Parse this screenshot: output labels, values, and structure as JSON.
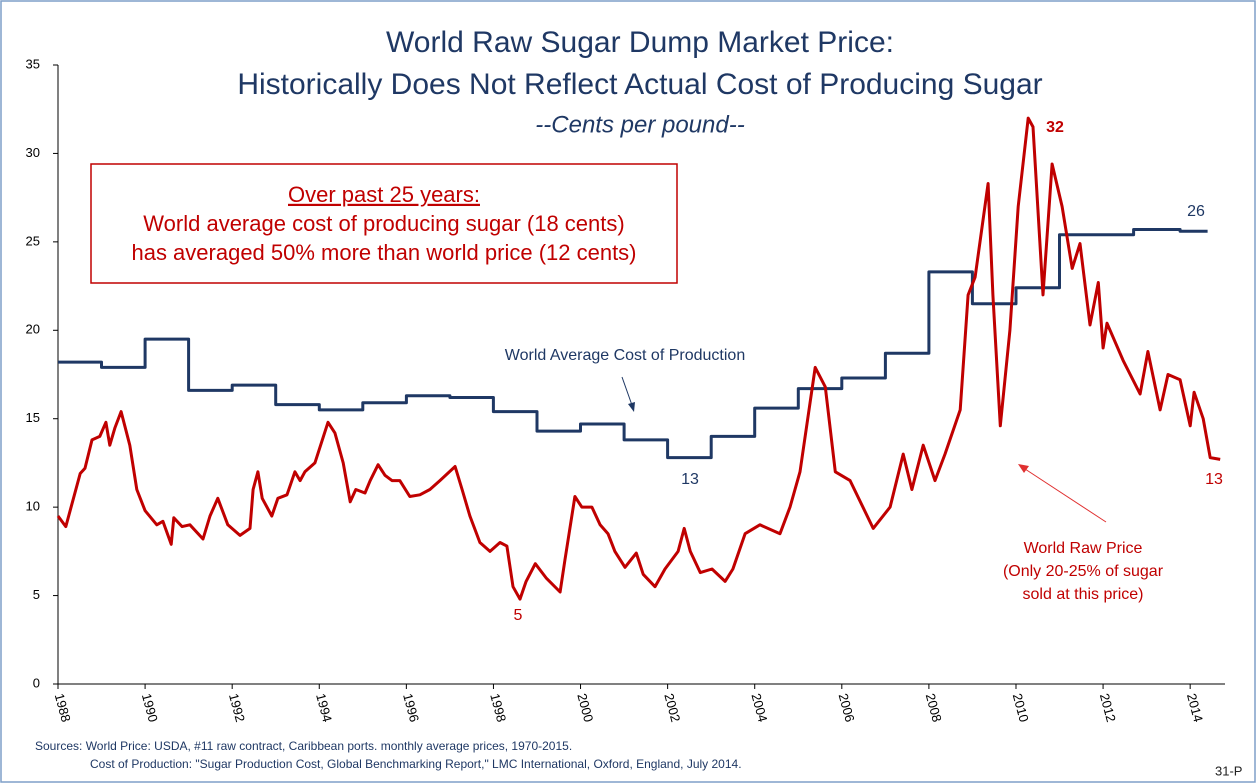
{
  "chart_data": {
    "type": "line",
    "title": [
      "World Raw Sugar Dump Market Price:",
      "Historically Does Not Reflect Actual Cost of Producing Sugar"
    ],
    "subtitle": "--Cents per pound--",
    "box": [
      "Over past 25 years:",
      "World average cost of producing sugar (18 cents)",
      "has averaged 50% more than world price (12 cents)"
    ],
    "annotations": [
      "32",
      "26",
      "13",
      "13",
      "5",
      "World Average Cost of Production",
      "World Raw Price",
      "(Only 20-25% of sugar",
      "sold at this price)"
    ],
    "sources": [
      "Sources:  World Price:  USDA, #11 raw contract, Caribbean ports. monthly average prices, 1970-2015.",
      "Cost of Production: \"Sugar Production Cost, Global Benchmarking Report,\" LMC International, Oxford, England, July 2014."
    ],
    "page_code": "31-P",
    "xlim": [
      1988,
      2014.8
    ],
    "xticks": [
      1988,
      1990,
      1992,
      1994,
      1996,
      1998,
      2000,
      2002,
      2004,
      2006,
      2008,
      2010,
      2012,
      2014
    ],
    "ylim": [
      0,
      35
    ],
    "yticks": [
      0,
      5,
      10,
      15,
      20,
      25,
      30,
      35
    ],
    "grid": false,
    "series": [
      {
        "name": "World Average Cost of Production",
        "color": "#1f3864",
        "x": [
          1988,
          1989,
          1989,
          1990,
          1990,
          1991,
          1991,
          1992,
          1992,
          1993,
          1993,
          1994,
          1994,
          1995,
          1995,
          1996,
          1996,
          1997,
          1997,
          1998,
          1998,
          1999,
          1999,
          2000,
          2000,
          2001,
          2001,
          2002,
          2002,
          2003,
          2003,
          2004,
          2004,
          2005,
          2005,
          2006,
          2006,
          2007,
          2007,
          2008,
          2008,
          2009,
          2009,
          2010,
          2010,
          2011,
          2011,
          2012.7,
          2012.7,
          2013.77,
          2013.77,
          2014.4
        ],
        "values": [
          18.2,
          18.2,
          17.9,
          17.9,
          19.5,
          19.5,
          16.6,
          16.6,
          16.9,
          16.9,
          15.8,
          15.8,
          15.5,
          15.5,
          15.9,
          15.9,
          16.3,
          16.3,
          16.2,
          16.2,
          15.4,
          15.4,
          14.3,
          14.3,
          14.7,
          14.7,
          13.8,
          13.8,
          12.8,
          12.8,
          14.0,
          14.0,
          15.6,
          15.6,
          16.7,
          16.7,
          17.3,
          17.3,
          18.7,
          18.7,
          23.3,
          23.3,
          21.5,
          21.5,
          22.4,
          22.4,
          25.4,
          25.4,
          25.7,
          25.7,
          25.6,
          25.6
        ]
      },
      {
        "name": "World Raw Price",
        "color": "#c00000",
        "x": [
          1988.0,
          1988.18,
          1988.51,
          1988.62,
          1988.78,
          1988.96,
          1989.1,
          1989.19,
          1989.31,
          1989.45,
          1989.65,
          1989.81,
          1990.0,
          1990.27,
          1990.41,
          1990.6,
          1990.66,
          1990.85,
          1991.03,
          1991.33,
          1991.49,
          1991.67,
          1991.9,
          1992.18,
          1992.41,
          1992.48,
          1992.59,
          1992.69,
          1992.91,
          1993.05,
          1993.26,
          1993.44,
          1993.56,
          1993.67,
          1993.9,
          1994.2,
          1994.36,
          1994.55,
          1994.71,
          1994.84,
          1995.05,
          1995.17,
          1995.35,
          1995.51,
          1995.67,
          1995.85,
          1996.08,
          1996.31,
          1996.54,
          1996.77,
          1997.12,
          1997.28,
          1997.46,
          1997.69,
          1997.92,
          1998.15,
          1998.31,
          1998.45,
          1998.61,
          1998.75,
          1998.96,
          1999.21,
          1999.53,
          1999.64,
          1999.87,
          2000.03,
          2000.26,
          2000.45,
          2000.63,
          2000.79,
          2001.02,
          2001.28,
          2001.44,
          2001.71,
          2001.94,
          2002.24,
          2002.38,
          2002.52,
          2002.75,
          2003.02,
          2003.32,
          2003.5,
          2003.78,
          2004.12,
          2004.58,
          2004.81,
          2005.04,
          2005.39,
          2005.62,
          2005.85,
          2006.19,
          2006.72,
          2007.11,
          2007.41,
          2007.61,
          2007.87,
          2008.14,
          2008.37,
          2008.72,
          2008.9,
          2009.06,
          2009.36,
          2009.47,
          2009.64,
          2009.86,
          2010.05,
          2010.28,
          2010.39,
          2010.62,
          2010.83,
          2011.06,
          2011.29,
          2011.47,
          2011.7,
          2011.89,
          2012.0,
          2012.09,
          2012.46,
          2012.85,
          2013.03,
          2013.31,
          2013.49,
          2013.77,
          2014.0,
          2014.09,
          2014.3,
          2014.46,
          2014.69
        ],
        "values": [
          9.5,
          8.9,
          11.9,
          12.2,
          13.8,
          14.0,
          14.8,
          13.5,
          14.5,
          15.4,
          13.5,
          11.0,
          9.8,
          9.0,
          9.2,
          7.9,
          9.4,
          8.9,
          9.0,
          8.2,
          9.5,
          10.5,
          9.0,
          8.4,
          8.8,
          11.0,
          12.0,
          10.5,
          9.5,
          10.5,
          10.7,
          12.0,
          11.5,
          12.0,
          12.5,
          14.8,
          14.2,
          12.5,
          10.3,
          11.0,
          10.8,
          11.5,
          12.4,
          11.8,
          11.5,
          11.5,
          10.6,
          10.7,
          11.0,
          11.5,
          12.3,
          11.0,
          9.5,
          8.0,
          7.5,
          8.0,
          7.8,
          5.5,
          4.8,
          5.8,
          6.8,
          6.0,
          5.2,
          7.0,
          10.6,
          10.0,
          10.0,
          9.0,
          8.5,
          7.5,
          6.6,
          7.4,
          6.2,
          5.5,
          6.5,
          7.5,
          8.8,
          7.5,
          6.3,
          6.5,
          5.8,
          6.5,
          8.5,
          9.0,
          8.5,
          10.0,
          12.0,
          17.9,
          16.8,
          12.0,
          11.5,
          8.8,
          10.0,
          13.0,
          11.0,
          13.5,
          11.5,
          13.0,
          15.5,
          22.0,
          23.0,
          28.3,
          22.0,
          14.6,
          20.0,
          27.0,
          32.0,
          31.5,
          22.0,
          29.4,
          27.0,
          23.5,
          24.9,
          20.3,
          22.7,
          19.0,
          20.4,
          18.3,
          16.4,
          18.8,
          15.5,
          17.5,
          17.2,
          14.6,
          16.5,
          15.0,
          12.8,
          12.7
        ]
      }
    ]
  }
}
